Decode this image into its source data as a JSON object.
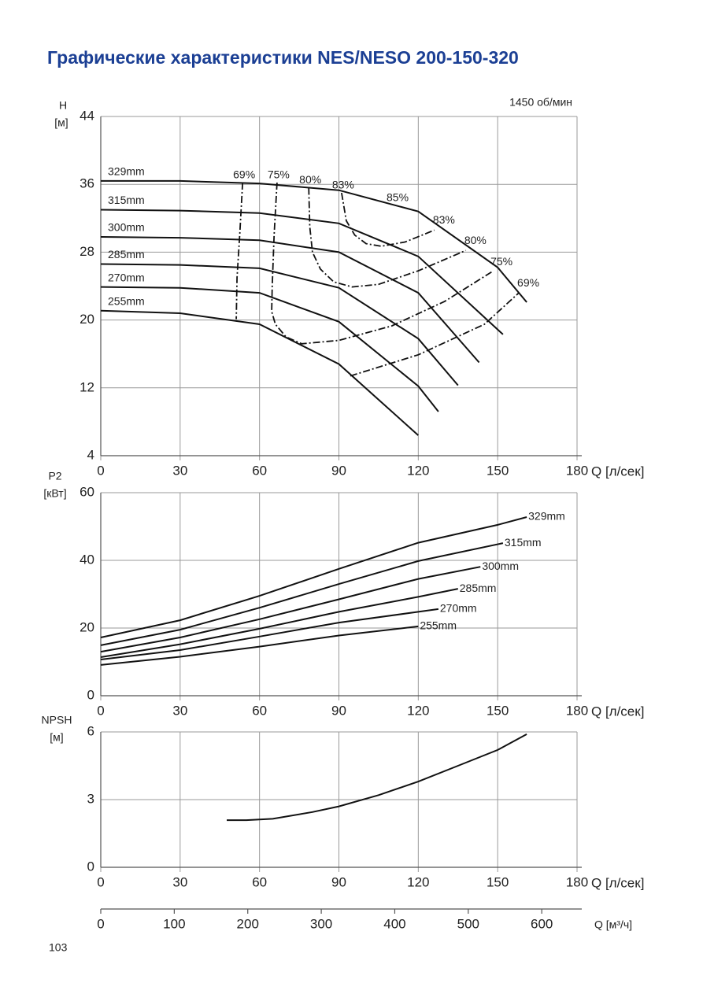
{
  "title": "Графические характеристики NES/NESO 200-150-320",
  "page_number": "103",
  "chart_data": [
    {
      "type": "line",
      "subtitle": "1450 об/мин",
      "y_label": "H",
      "y_unit": "[м]",
      "x_label": "Q [л/сек]",
      "xlim": [
        0,
        180
      ],
      "xticks": [
        0,
        30,
        60,
        90,
        120,
        150,
        180
      ],
      "ylim": [
        4,
        44
      ],
      "yticks": [
        4,
        12,
        20,
        28,
        36,
        44
      ],
      "grid": true,
      "color": "#111111",
      "series": [
        {
          "name": "329mm",
          "x": [
            0,
            30,
            60,
            90,
            120,
            150,
            161
          ],
          "values": [
            36.4,
            36.4,
            36.1,
            35.3,
            32.8,
            26.2,
            22.1
          ]
        },
        {
          "name": "315mm",
          "x": [
            0,
            30,
            60,
            90,
            120,
            152
          ],
          "values": [
            33.0,
            32.9,
            32.6,
            31.4,
            27.5,
            18.3
          ]
        },
        {
          "name": "300mm",
          "x": [
            0,
            30,
            60,
            90,
            120,
            143
          ],
          "values": [
            29.8,
            29.7,
            29.4,
            28.0,
            23.2,
            15.0
          ]
        },
        {
          "name": "285mm",
          "x": [
            0,
            30,
            60,
            90,
            120,
            135
          ],
          "values": [
            26.6,
            26.5,
            26.1,
            23.8,
            17.8,
            12.3
          ]
        },
        {
          "name": "270mm",
          "x": [
            0,
            30,
            60,
            90,
            120,
            127.6
          ],
          "values": [
            23.9,
            23.8,
            23.2,
            19.8,
            12.2,
            9.2
          ]
        },
        {
          "name": "255mm",
          "x": [
            0,
            30,
            60,
            90,
            120
          ],
          "values": [
            21.1,
            20.8,
            19.5,
            14.8,
            6.4
          ]
        }
      ],
      "efficiency_curves": [
        {
          "name": "69%",
          "x": [
            53.6,
            52.5,
            51.5,
            51.2,
            null,
            94.3,
            120,
            145,
            158
          ],
          "values": [
            36.2,
            30,
            25,
            20.1,
            null,
            13.4,
            15.9,
            19.5,
            23.2
          ]
        },
        {
          "name": "75%",
          "x": [
            66.6,
            65.5,
            64.8,
            64.6,
            66,
            70,
            76,
            90,
            110,
            130,
            147.9
          ],
          "values": [
            36.2,
            30,
            24,
            21,
            19.5,
            18,
            17.2,
            17.6,
            19.3,
            22.2,
            25.7
          ]
        },
        {
          "name": "80%",
          "x": [
            78.6,
            79,
            80,
            83,
            88,
            95,
            105,
            120,
            138
          ],
          "values": [
            35.6,
            31,
            28,
            26,
            24.5,
            23.9,
            24.2,
            25.8,
            28.2
          ]
        },
        {
          "name": "83%",
          "x": [
            91,
            92.8,
            96,
            100.3,
            106,
            115,
            126.1
          ],
          "values": [
            35.0,
            31.7,
            30,
            29.0,
            28.7,
            29.2,
            30.6
          ]
        }
      ],
      "annotations": [
        "85%"
      ]
    },
    {
      "type": "line",
      "y_label": "P2",
      "y_unit": "[кВт]",
      "x_label": "Q [л/сек]",
      "xlim": [
        0,
        180
      ],
      "xticks": [
        0,
        30,
        60,
        90,
        120,
        150,
        180
      ],
      "ylim": [
        0,
        60
      ],
      "yticks": [
        0,
        20,
        40,
        60
      ],
      "grid": true,
      "color": "#111111",
      "series": [
        {
          "name": "329mm",
          "x": [
            0,
            30,
            60,
            90,
            120,
            150,
            161
          ],
          "values": [
            17.2,
            22.3,
            29.5,
            37.5,
            45.2,
            50.5,
            52.8
          ]
        },
        {
          "name": "315mm",
          "x": [
            0,
            30,
            60,
            90,
            120,
            152
          ],
          "values": [
            14.9,
            19.5,
            26,
            33,
            39.8,
            45.1
          ]
        },
        {
          "name": "300mm",
          "x": [
            0,
            30,
            60,
            90,
            120,
            143.5
          ],
          "values": [
            13.0,
            17.2,
            22.6,
            28.5,
            34.5,
            38.1
          ]
        },
        {
          "name": "285mm",
          "x": [
            0,
            30,
            60,
            90,
            120,
            135
          ],
          "values": [
            11.4,
            15.2,
            19.8,
            24.8,
            29.2,
            31.6
          ]
        },
        {
          "name": "270mm",
          "x": [
            0,
            30,
            60,
            90,
            120,
            127.6
          ],
          "values": [
            10.7,
            13.5,
            17.5,
            21.6,
            24.8,
            25.6
          ]
        },
        {
          "name": "255mm",
          "x": [
            0,
            30,
            60,
            90,
            120
          ],
          "values": [
            9.1,
            11.5,
            14.5,
            17.8,
            20.5
          ]
        }
      ]
    },
    {
      "type": "line",
      "y_label": "NPSH",
      "y_unit": "[м]",
      "x_label": "Q [л/сек]",
      "xlim": [
        0,
        180
      ],
      "xticks": [
        0,
        30,
        60,
        90,
        120,
        150,
        180
      ],
      "ylim": [
        0,
        6
      ],
      "yticks": [
        0,
        3,
        6
      ],
      "grid": true,
      "color": "#111111",
      "x": [
        47.6,
        55,
        65,
        80,
        90,
        105,
        120,
        135,
        150,
        161
      ],
      "values": [
        2.09,
        2.09,
        2.15,
        2.45,
        2.7,
        3.2,
        3.8,
        4.5,
        5.2,
        5.9
      ],
      "x2_label": "Q [м³/ч]",
      "x2lim": [
        0,
        648
      ],
      "x2ticks": [
        0,
        100,
        200,
        300,
        400,
        500,
        600
      ]
    }
  ]
}
